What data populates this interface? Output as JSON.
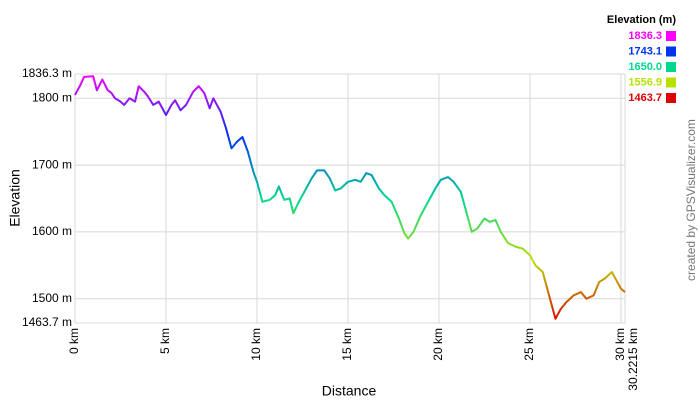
{
  "chart_data": {
    "type": "line",
    "x_label": "Distance",
    "y_label": "Elevation",
    "credit": "created by GPSVisualizer.com",
    "grid": true,
    "legend": {
      "title": "Elevation (m)",
      "entries": [
        {
          "value": 1836.3,
          "color": "#ff00ff"
        },
        {
          "value": 1743.1,
          "color": "#0033ee"
        },
        {
          "value": 1650,
          "label": "1650.0",
          "color": "#00d890"
        },
        {
          "value": 1556.9,
          "color": "#b8e000"
        },
        {
          "value": 1463.7,
          "color": "#dd0000"
        }
      ]
    },
    "xlim": [
      0,
      30.2215
    ],
    "xticks": [
      {
        "value": 0,
        "label": "0 km"
      },
      {
        "value": 5,
        "label": "5 km"
      },
      {
        "value": 10,
        "label": "10 km"
      },
      {
        "value": 15,
        "label": "15 km"
      },
      {
        "value": 20,
        "label": "20 km"
      },
      {
        "value": 25,
        "label": "25 km"
      },
      {
        "value": 30,
        "label": "30 km"
      },
      {
        "value": 30.2215,
        "label": "30.2215 km"
      }
    ],
    "ylim": [
      1463.7,
      1836.3
    ],
    "yticks": [
      {
        "value": 1463.7,
        "label": "1463.7 m"
      },
      {
        "value": 1500,
        "label": "1500 m"
      },
      {
        "value": 1600,
        "label": "1600 m"
      },
      {
        "value": 1700,
        "label": "1700 m"
      },
      {
        "value": 1800,
        "label": "1800 m"
      },
      {
        "value": 1836.3,
        "label": "1836.3 m"
      }
    ],
    "x": [
      0,
      0.3,
      0.5,
      1.0,
      1.2,
      1.5,
      1.8,
      2.0,
      2.2,
      2.5,
      2.7,
      3.0,
      3.3,
      3.5,
      3.8,
      4.0,
      4.3,
      4.6,
      5.0,
      5.3,
      5.5,
      5.8,
      6.1,
      6.5,
      6.8,
      7.1,
      7.4,
      7.6,
      8.0,
      8.3,
      8.6,
      8.9,
      9.2,
      9.5,
      9.8,
      10.0,
      10.3,
      10.7,
      11.0,
      11.2,
      11.5,
      11.8,
      12.0,
      12.3,
      12.7,
      13.0,
      13.3,
      13.7,
      14.0,
      14.3,
      14.6,
      15.0,
      15.4,
      15.7,
      16.0,
      16.3,
      16.7,
      17.0,
      17.4,
      17.8,
      18.1,
      18.3,
      18.6,
      19.0,
      19.4,
      19.8,
      20.1,
      20.5,
      20.8,
      21.2,
      21.5,
      21.8,
      22.1,
      22.5,
      22.8,
      23.1,
      23.4,
      23.8,
      24.2,
      24.6,
      25.0,
      25.3,
      25.7,
      26.0,
      26.4,
      26.7,
      27.0,
      27.4,
      27.8,
      28.1,
      28.5,
      28.8,
      29.1,
      29.5,
      29.7,
      30.0,
      30.2215
    ],
    "values": [
      1805,
      1820,
      1832,
      1833,
      1812,
      1828,
      1812,
      1808,
      1800,
      1795,
      1790,
      1800,
      1795,
      1818,
      1810,
      1803,
      1790,
      1795,
      1775,
      1790,
      1797,
      1782,
      1790,
      1810,
      1818,
      1808,
      1785,
      1800,
      1780,
      1755,
      1725,
      1735,
      1742,
      1720,
      1690,
      1675,
      1645,
      1648,
      1655,
      1668,
      1648,
      1650,
      1628,
      1645,
      1665,
      1680,
      1692,
      1692,
      1680,
      1662,
      1665,
      1675,
      1678,
      1675,
      1688,
      1685,
      1665,
      1655,
      1645,
      1620,
      1598,
      1590,
      1600,
      1625,
      1645,
      1665,
      1678,
      1682,
      1675,
      1660,
      1630,
      1600,
      1605,
      1620,
      1615,
      1618,
      1600,
      1583,
      1578,
      1575,
      1565,
      1550,
      1540,
      1510,
      1470,
      1485,
      1495,
      1505,
      1510,
      1500,
      1505,
      1525,
      1530,
      1540,
      1530,
      1515,
      1510
    ]
  }
}
